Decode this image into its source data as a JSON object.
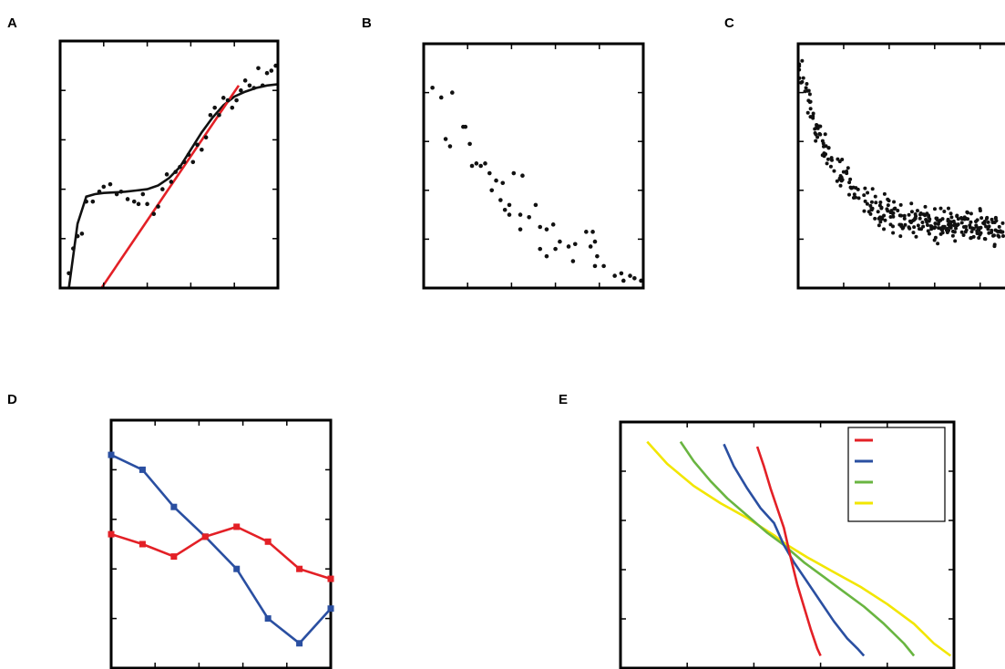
{
  "panels": [
    {
      "label": "A"
    },
    {
      "label": "B"
    },
    {
      "label": "C"
    },
    {
      "label": "D"
    },
    {
      "label": "E"
    }
  ],
  "chart_data": [
    {
      "panel": "A",
      "type": "scatter",
      "xlim": [
        0,
        10
      ],
      "ylim": [
        0,
        10
      ],
      "points": [
        [
          0.4,
          0.6
        ],
        [
          0.6,
          1.6
        ],
        [
          0.8,
          2.1
        ],
        [
          1.0,
          2.2
        ],
        [
          1.2,
          3.5
        ],
        [
          1.5,
          3.5
        ],
        [
          1.8,
          3.9
        ],
        [
          2.0,
          4.1
        ],
        [
          2.3,
          4.2
        ],
        [
          2.6,
          3.8
        ],
        [
          2.8,
          3.9
        ],
        [
          3.1,
          3.6
        ],
        [
          3.4,
          3.5
        ],
        [
          3.6,
          3.4
        ],
        [
          3.8,
          3.8
        ],
        [
          4.0,
          3.4
        ],
        [
          4.3,
          3.0
        ],
        [
          4.5,
          3.3
        ],
        [
          4.7,
          4.0
        ],
        [
          4.9,
          4.6
        ],
        [
          5.1,
          4.3
        ],
        [
          5.3,
          4.7
        ],
        [
          5.5,
          4.9
        ],
        [
          5.7,
          5.1
        ],
        [
          5.9,
          5.4
        ],
        [
          6.1,
          5.1
        ],
        [
          6.3,
          5.8
        ],
        [
          6.5,
          5.6
        ],
        [
          6.7,
          6.1
        ],
        [
          6.9,
          7.0
        ],
        [
          7.1,
          7.3
        ],
        [
          7.3,
          7.0
        ],
        [
          7.5,
          7.7
        ],
        [
          7.7,
          7.6
        ],
        [
          7.9,
          7.3
        ],
        [
          8.1,
          7.6
        ],
        [
          8.3,
          8.0
        ],
        [
          8.5,
          8.4
        ],
        [
          8.7,
          8.2
        ],
        [
          8.9,
          8.1
        ],
        [
          9.1,
          8.9
        ],
        [
          9.3,
          8.2
        ],
        [
          9.5,
          8.7
        ],
        [
          9.7,
          8.8
        ],
        [
          9.9,
          9.0
        ]
      ],
      "series": [
        {
          "kind": "curve",
          "color": "#111111",
          "x": [
            0.4,
            0.8,
            1.2,
            1.6,
            2.0,
            2.5,
            3.0,
            3.5,
            4.0,
            4.5,
            5.0,
            5.5,
            6.0,
            6.5,
            7.0,
            7.5,
            8.0,
            8.5,
            9.0,
            9.5,
            10.0
          ],
          "y": [
            0.0,
            2.6,
            3.7,
            3.8,
            3.85,
            3.87,
            3.9,
            3.95,
            4.0,
            4.15,
            4.45,
            4.9,
            5.6,
            6.3,
            6.9,
            7.4,
            7.75,
            7.95,
            8.1,
            8.2,
            8.25
          ]
        },
        {
          "kind": "line",
          "color": "#e32026",
          "x": [
            1.9,
            8.2
          ],
          "y": [
            0.0,
            8.2
          ]
        }
      ]
    },
    {
      "panel": "B",
      "type": "scatter",
      "xlim": [
        0,
        10
      ],
      "ylim": [
        0,
        10
      ],
      "points": [
        [
          0.4,
          8.2
        ],
        [
          0.8,
          7.8
        ],
        [
          1.3,
          8.0
        ],
        [
          1.0,
          6.1
        ],
        [
          1.2,
          5.8
        ],
        [
          1.8,
          6.6
        ],
        [
          1.9,
          6.6
        ],
        [
          2.1,
          5.9
        ],
        [
          2.4,
          5.1
        ],
        [
          2.2,
          5.0
        ],
        [
          2.6,
          5.0
        ],
        [
          2.8,
          5.1
        ],
        [
          3.1,
          4.0
        ],
        [
          3.3,
          4.4
        ],
        [
          3.0,
          4.7
        ],
        [
          3.6,
          4.3
        ],
        [
          3.5,
          3.6
        ],
        [
          3.9,
          3.4
        ],
        [
          4.1,
          4.7
        ],
        [
          4.5,
          4.6
        ],
        [
          3.7,
          3.2
        ],
        [
          3.9,
          3.0
        ],
        [
          4.4,
          3.0
        ],
        [
          4.8,
          2.9
        ],
        [
          5.1,
          3.4
        ],
        [
          5.3,
          2.5
        ],
        [
          5.6,
          2.4
        ],
        [
          5.9,
          2.6
        ],
        [
          4.4,
          2.4
        ],
        [
          5.3,
          1.6
        ],
        [
          5.6,
          1.3
        ],
        [
          6.0,
          1.6
        ],
        [
          6.2,
          1.9
        ],
        [
          6.6,
          1.7
        ],
        [
          6.8,
          1.1
        ],
        [
          6.9,
          1.8
        ],
        [
          7.4,
          2.3
        ],
        [
          7.7,
          2.3
        ],
        [
          7.8,
          1.9
        ],
        [
          7.6,
          1.7
        ],
        [
          7.9,
          1.3
        ],
        [
          7.8,
          0.9
        ],
        [
          8.2,
          0.9
        ],
        [
          8.7,
          0.5
        ],
        [
          9.0,
          0.6
        ],
        [
          9.4,
          0.5
        ],
        [
          9.1,
          0.3
        ],
        [
          9.6,
          0.4
        ],
        [
          9.9,
          0.3
        ]
      ]
    },
    {
      "panel": "C",
      "type": "scatter",
      "xlim": [
        0,
        10
      ],
      "ylim": [
        0,
        10
      ],
      "scatter_model": {
        "count": 320,
        "a": 0.5,
        "b": 7.0,
        "k": 0.55,
        "noise": 0.5
      }
    },
    {
      "panel": "D",
      "type": "line",
      "xlim": [
        0,
        7
      ],
      "ylim": [
        0,
        10
      ],
      "series": [
        {
          "color": "#2a4fa1",
          "x": [
            0,
            1,
            2,
            3,
            4,
            5,
            6,
            7
          ],
          "y": [
            8.6,
            8.0,
            6.5,
            5.3,
            4.0,
            2.0,
            1.0,
            2.4
          ]
        },
        {
          "color": "#e32026",
          "x": [
            0,
            1,
            2,
            3,
            4,
            5,
            6,
            7
          ],
          "y": [
            5.4,
            5.0,
            4.5,
            5.3,
            5.7,
            5.1,
            4.0,
            3.6
          ]
        }
      ]
    },
    {
      "panel": "E",
      "type": "line",
      "xlim": [
        0,
        10
      ],
      "ylim": [
        0,
        10
      ],
      "legend": {
        "placement": "top-right"
      },
      "series": [
        {
          "color": "#e32026",
          "x": [
            4.1,
            4.3,
            4.5,
            4.7,
            4.9,
            5.1,
            5.3,
            5.5,
            5.7,
            5.9,
            6.0
          ],
          "y": [
            9.0,
            8.2,
            7.3,
            6.5,
            5.7,
            4.5,
            3.4,
            2.5,
            1.6,
            0.8,
            0.5
          ]
        },
        {
          "color": "#2a4fa1",
          "x": [
            3.1,
            3.4,
            3.8,
            4.2,
            4.6,
            4.9,
            5.2,
            5.6,
            6.0,
            6.4,
            6.8,
            7.1,
            7.3
          ],
          "y": [
            9.1,
            8.2,
            7.3,
            6.5,
            5.9,
            5.0,
            4.3,
            3.5,
            2.7,
            1.9,
            1.2,
            0.8,
            0.5
          ]
        },
        {
          "color": "#69b541",
          "x": [
            1.8,
            2.2,
            2.7,
            3.2,
            3.8,
            4.4,
            4.9,
            5.5,
            6.1,
            6.7,
            7.3,
            7.9,
            8.5,
            8.8
          ],
          "y": [
            9.2,
            8.4,
            7.6,
            6.9,
            6.2,
            5.5,
            5.0,
            4.3,
            3.7,
            3.1,
            2.5,
            1.8,
            1.0,
            0.5
          ]
        },
        {
          "color": "#f2e600",
          "x": [
            0.8,
            1.4,
            2.2,
            3.0,
            3.8,
            4.6,
            5.0,
            5.6,
            6.4,
            7.2,
            8.0,
            8.8,
            9.4,
            9.9
          ],
          "y": [
            9.2,
            8.3,
            7.4,
            6.7,
            6.1,
            5.4,
            5.0,
            4.5,
            3.9,
            3.3,
            2.6,
            1.8,
            1.0,
            0.5
          ]
        }
      ]
    }
  ]
}
